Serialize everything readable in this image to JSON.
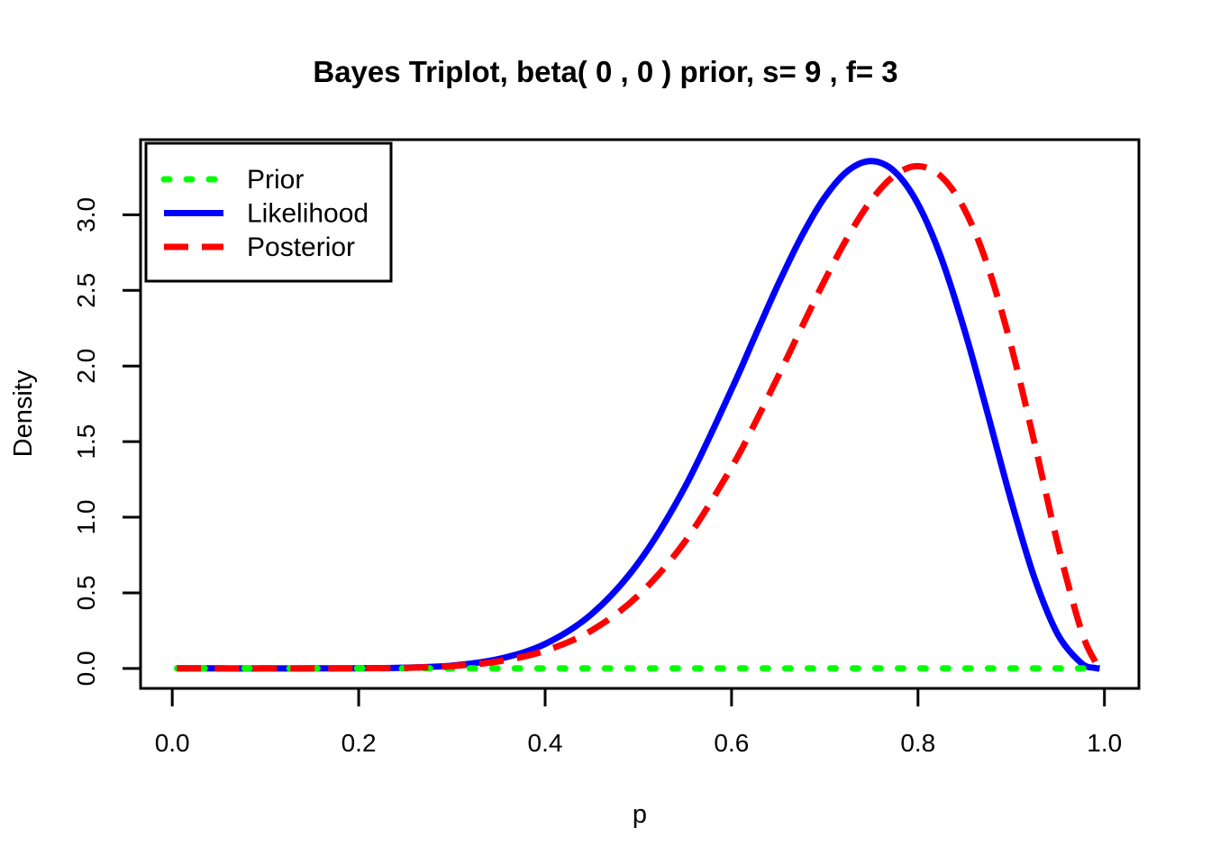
{
  "chart_data": {
    "type": "line",
    "title": "Bayes Triplot, beta( 0 , 0 ) prior, s= 9 , f= 3",
    "xlabel": "p",
    "ylabel": "Density",
    "xlim": [
      -0.034,
      1.037
    ],
    "ylim": [
      -0.132,
      3.497
    ],
    "x_ticks": [
      0,
      0.2,
      0.4,
      0.6,
      0.8,
      1.0
    ],
    "x_tick_labels": [
      "0.0",
      "0.2",
      "0.4",
      "0.6",
      "0.8",
      "1.0"
    ],
    "y_ticks": [
      0,
      0.5,
      1.0,
      1.5,
      2.0,
      2.5,
      3.0
    ],
    "y_tick_labels": [
      "0.0",
      "0.5",
      "1.0",
      "1.5",
      "2.0",
      "2.5",
      "3.0"
    ],
    "grid": false,
    "background": "#FFFFFF",
    "axis_color": "#000000",
    "legend": {
      "position": "topleft",
      "items": [
        "Prior",
        "Likelihood",
        "Posterior"
      ]
    },
    "series": [
      {
        "name": "Prior",
        "color": "#00FF00",
        "line_style": "dotted",
        "x": [
          0.005,
          0.995
        ],
        "y": [
          0,
          0
        ]
      },
      {
        "name": "Likelihood",
        "color": "#0000FF",
        "line_style": "solid",
        "x": [
          0.005,
          0.05,
          0.1,
          0.15,
          0.2,
          0.25,
          0.3,
          0.35,
          0.4,
          0.45,
          0.5,
          0.55,
          0.6,
          0.625,
          0.65,
          0.675,
          0.7,
          0.725,
          0.75,
          0.775,
          0.8,
          0.825,
          0.85,
          0.875,
          0.9,
          0.925,
          0.95,
          0.975,
          0.99,
          0.995
        ],
        "y": [
          0,
          0,
          0,
          0.0001,
          0.001,
          0.005,
          0.019,
          0.062,
          0.162,
          0.36,
          0.698,
          1.2,
          1.845,
          2.195,
          2.54,
          2.856,
          3.116,
          3.292,
          3.355,
          3.286,
          3.071,
          2.714,
          2.236,
          1.68,
          1.108,
          0.598,
          0.225,
          0.036,
          0.003,
          0.001
        ]
      },
      {
        "name": "Posterior",
        "color": "#FF0000",
        "line_style": "dashed",
        "x": [
          0.005,
          0.05,
          0.1,
          0.15,
          0.2,
          0.25,
          0.3,
          0.35,
          0.4,
          0.45,
          0.5,
          0.55,
          0.6,
          0.625,
          0.65,
          0.675,
          0.7,
          0.725,
          0.75,
          0.775,
          0.8,
          0.825,
          0.85,
          0.875,
          0.9,
          0.925,
          0.95,
          0.975,
          0.99,
          0.995
        ],
        "y": [
          0,
          0,
          0,
          0.0001,
          0.001,
          0.004,
          0.016,
          0.047,
          0.117,
          0.252,
          0.483,
          0.839,
          1.33,
          1.621,
          1.932,
          2.253,
          2.568,
          2.857,
          3.097,
          3.261,
          3.322,
          3.253,
          3.035,
          2.658,
          2.131,
          1.492,
          0.821,
          0.253,
          0.046,
          0.012
        ]
      }
    ]
  }
}
